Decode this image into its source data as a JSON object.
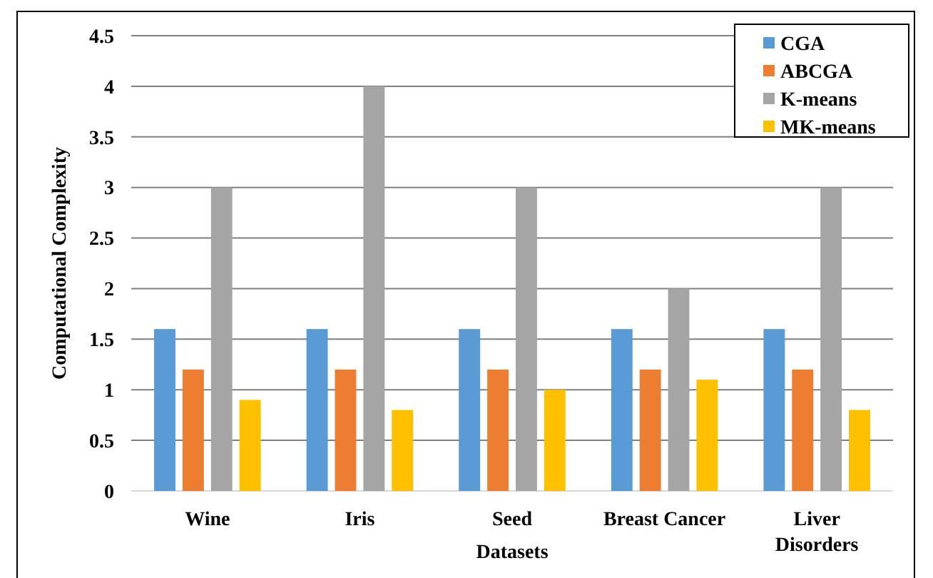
{
  "chart_data": {
    "type": "bar",
    "xlabel": "Datasets",
    "ylabel": "Computational Complexity",
    "categories": [
      "Wine",
      "Iris",
      "Seed",
      "Breast Cancer",
      "Liver Disorders"
    ],
    "series": [
      {
        "name": "CGA",
        "color": "#5b9bd5",
        "values": [
          1.6,
          1.6,
          1.6,
          1.6,
          1.6
        ]
      },
      {
        "name": "ABCGA",
        "color": "#ed7d31",
        "values": [
          1.2,
          1.2,
          1.2,
          1.2,
          1.2
        ]
      },
      {
        "name": "K-means",
        "color": "#a5a5a5",
        "values": [
          3,
          4,
          3,
          2,
          3
        ]
      },
      {
        "name": "MK-means",
        "color": "#ffc000",
        "values": [
          0.9,
          0.8,
          1.0,
          1.1,
          0.8
        ]
      }
    ],
    "ylim": [
      0,
      4.5
    ],
    "yticks": [
      0,
      0.5,
      1,
      1.5,
      2,
      2.5,
      3,
      3.5,
      4,
      4.5
    ],
    "grid": "y",
    "legend": "top right"
  }
}
